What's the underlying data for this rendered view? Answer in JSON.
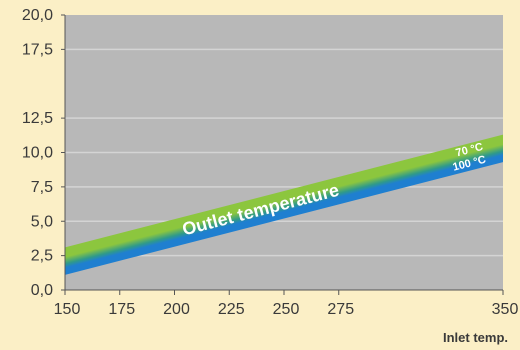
{
  "chart_data": {
    "type": "area",
    "title": "",
    "xlabel": "Inlet temp.",
    "ylabel": "",
    "xlim": [
      150,
      350
    ],
    "ylim": [
      0,
      20
    ],
    "x_ticks": [
      150,
      175,
      200,
      225,
      250,
      275,
      350
    ],
    "x_tick_labels": [
      "150",
      "175",
      "200",
      "225",
      "250",
      "275",
      "350"
    ],
    "y_ticks": [
      0,
      2.5,
      5,
      7.5,
      10,
      12.5,
      17.5,
      20
    ],
    "y_tick_labels": [
      "0,0",
      "2,5",
      "5,0",
      "7,5",
      "10,0",
      "12,5",
      "17,5",
      "20,0"
    ],
    "band": {
      "label": "Outlet temperature",
      "series": [
        {
          "name": "70 °C",
          "x": [
            150,
            350
          ],
          "y": [
            3.1,
            11.3
          ],
          "color": "#8cc63e"
        },
        {
          "name": "100 °C",
          "x": [
            150,
            350
          ],
          "y": [
            1.1,
            9.3
          ],
          "color": "#1f7fd0"
        }
      ]
    },
    "grid": true,
    "colors": {
      "background": "#fbefc6",
      "plot_area": "#b8b8b8",
      "grid": "#d4d4d4",
      "axis": "#555555"
    }
  }
}
